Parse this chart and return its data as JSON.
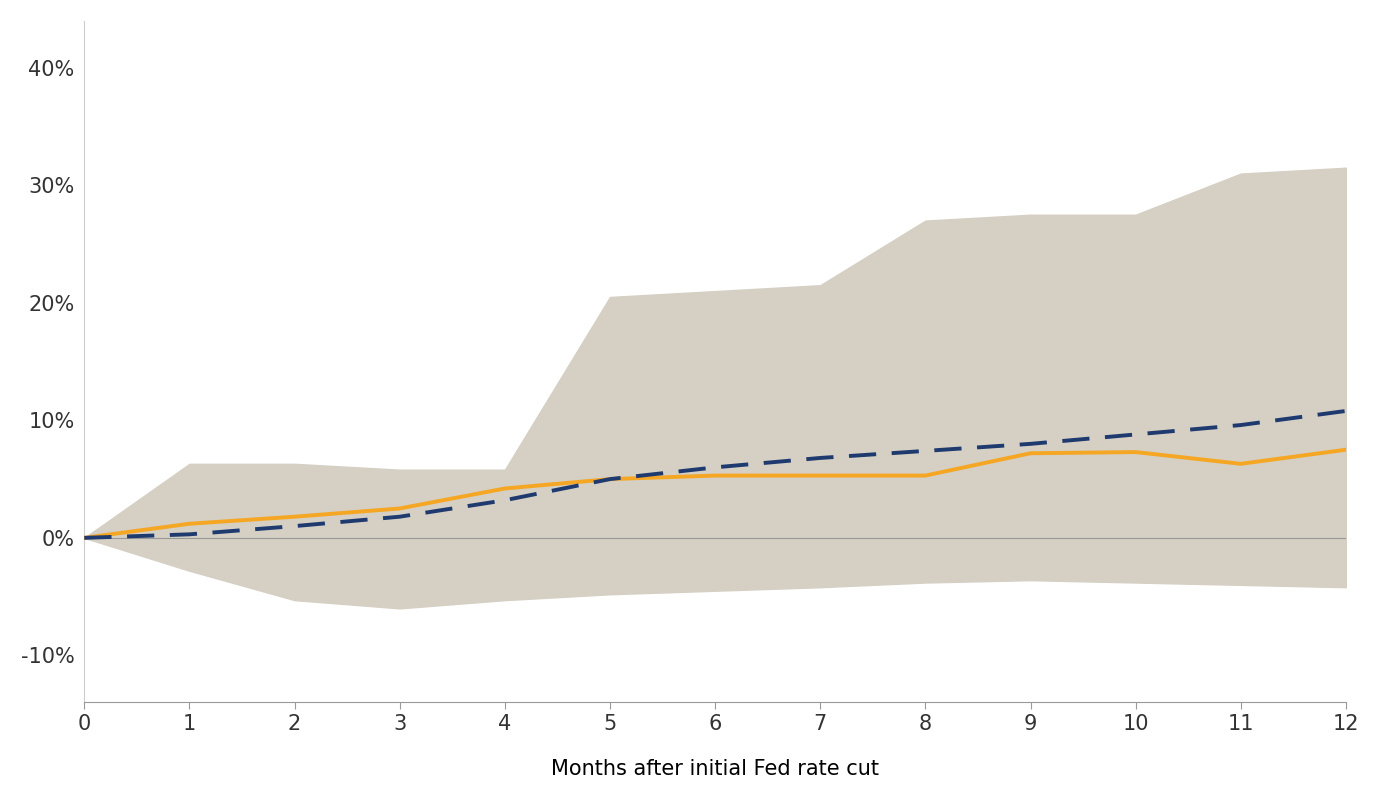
{
  "months": [
    0,
    1,
    2,
    3,
    4,
    5,
    6,
    7,
    8,
    9,
    10,
    11,
    12
  ],
  "median_line": [
    0.0,
    0.012,
    0.018,
    0.025,
    0.042,
    0.05,
    0.053,
    0.053,
    0.053,
    0.072,
    0.073,
    0.063,
    0.075
  ],
  "dashed_line": [
    0.0,
    0.003,
    0.01,
    0.018,
    0.032,
    0.05,
    0.06,
    0.068,
    0.074,
    0.08,
    0.088,
    0.096,
    0.108
  ],
  "upper_band": [
    0.0,
    0.063,
    0.063,
    0.058,
    0.058,
    0.205,
    0.21,
    0.215,
    0.27,
    0.275,
    0.275,
    0.31,
    0.315
  ],
  "lower_band": [
    0.0,
    -0.028,
    -0.053,
    -0.06,
    -0.053,
    -0.048,
    -0.045,
    -0.042,
    -0.038,
    -0.036,
    -0.038,
    -0.04,
    -0.042
  ],
  "band_color": "#d5cfc4",
  "median_color": "#f5a623",
  "dashed_color": "#1e3a6e",
  "background_color": "#ffffff",
  "xlabel": "Months after initial Fed rate cut",
  "ylim": [
    -0.14,
    0.44
  ],
  "xlim": [
    0,
    12
  ],
  "yticks": [
    -0.1,
    0.0,
    0.1,
    0.2,
    0.3,
    0.4
  ],
  "ytick_labels": [
    "-10%",
    "0%",
    "10%",
    "20%",
    "30%",
    "40%"
  ],
  "xticks": [
    0,
    1,
    2,
    3,
    4,
    5,
    6,
    7,
    8,
    9,
    10,
    11,
    12
  ],
  "xlabel_fontsize": 15,
  "tick_fontsize": 15,
  "median_linewidth": 2.8,
  "dashed_linewidth": 2.8
}
